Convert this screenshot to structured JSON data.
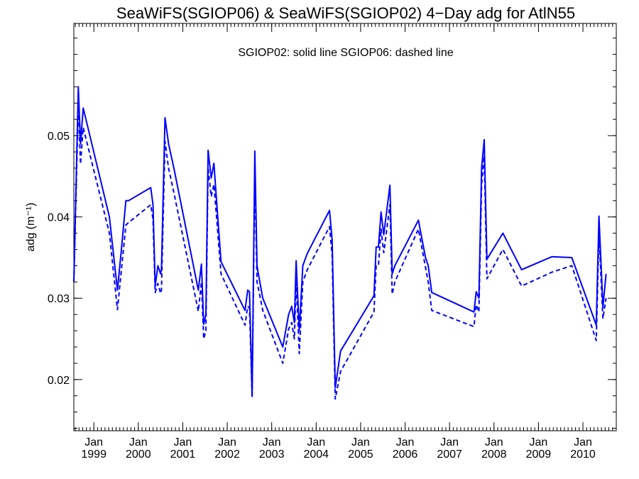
{
  "chart_data": {
    "type": "line",
    "title": "SeaWiFS(SGIOP06) & SeaWiFS(SGIOP02) 4−Day adg for AtlN55",
    "annotation": "SGIOP02: solid line   SGIOP06: dashed line",
    "ylabel": "adg (m⁻¹)",
    "xlim": [
      1998.55,
      2010.75
    ],
    "ylim": [
      0.0137,
      0.0638
    ],
    "grid": false,
    "line_color": "#0000ff",
    "x_ticks": [
      {
        "x": 1999.0,
        "top": "Jan",
        "bottom": "1999"
      },
      {
        "x": 2000.0,
        "top": "Jan",
        "bottom": "2000"
      },
      {
        "x": 2001.0,
        "top": "Jan",
        "bottom": "2001"
      },
      {
        "x": 2002.0,
        "top": "Jan",
        "bottom": "2002"
      },
      {
        "x": 2003.0,
        "top": "Jan",
        "bottom": "2003"
      },
      {
        "x": 2004.0,
        "top": "Jan",
        "bottom": "2004"
      },
      {
        "x": 2005.0,
        "top": "Jan",
        "bottom": "2005"
      },
      {
        "x": 2006.0,
        "top": "Jan",
        "bottom": "2006"
      },
      {
        "x": 2007.0,
        "top": "Jan",
        "bottom": "2007"
      },
      {
        "x": 2008.0,
        "top": "Jan",
        "bottom": "2008"
      },
      {
        "x": 2009.0,
        "top": "Jan",
        "bottom": "2009"
      },
      {
        "x": 2010.0,
        "top": "Jan",
        "bottom": "2010"
      }
    ],
    "y_ticks": [
      {
        "y": 0.02,
        "label": "0.02"
      },
      {
        "y": 0.03,
        "label": "0.03"
      },
      {
        "y": 0.04,
        "label": "0.04"
      },
      {
        "y": 0.05,
        "label": "0.05"
      }
    ],
    "series": [
      {
        "name": "SGIOP02",
        "style": "solid",
        "x": [
          1998.55,
          1998.65,
          1998.7,
          1998.76,
          1999.35,
          1999.53,
          1999.62,
          1999.72,
          1999.78,
          2000.28,
          2000.33,
          2000.38,
          2000.44,
          2000.5,
          2000.52,
          2000.6,
          2000.68,
          2000.8,
          2001.35,
          2001.42,
          2001.47,
          2001.52,
          2001.57,
          2001.64,
          2001.7,
          2001.76,
          2001.86,
          2002.4,
          2002.46,
          2002.5,
          2002.56,
          2002.62,
          2002.67,
          2002.7,
          2002.8,
          2003.25,
          2003.38,
          2003.45,
          2003.51,
          2003.55,
          2003.62,
          2003.7,
          2003.8,
          2004.3,
          2004.36,
          2004.43,
          2004.55,
          2005.3,
          2005.35,
          2005.4,
          2005.46,
          2005.52,
          2005.66,
          2005.71,
          2005.77,
          2006.3,
          2006.46,
          2006.52,
          2006.6,
          2007.55,
          2007.6,
          2007.66,
          2007.72,
          2007.78,
          2007.84,
          2008.2,
          2008.62,
          2009.3,
          2009.75,
          2010.3,
          2010.36,
          2010.45,
          2010.52
        ],
        "y": [
          0.032,
          0.056,
          0.049,
          0.0534,
          0.04,
          0.031,
          0.036,
          0.042,
          0.042,
          0.0436,
          0.0415,
          0.0315,
          0.034,
          0.033,
          0.0335,
          0.0522,
          0.049,
          0.046,
          0.031,
          0.0342,
          0.0268,
          0.028,
          0.0482,
          0.0448,
          0.0466,
          0.042,
          0.0345,
          0.0285,
          0.031,
          0.0308,
          0.018,
          0.0481,
          0.034,
          0.033,
          0.03,
          0.024,
          0.028,
          0.029,
          0.027,
          0.0346,
          0.026,
          0.034,
          0.0355,
          0.0408,
          0.0372,
          0.019,
          0.0235,
          0.0303,
          0.0363,
          0.0363,
          0.0406,
          0.0378,
          0.0439,
          0.033,
          0.034,
          0.0396,
          0.035,
          0.034,
          0.0307,
          0.0283,
          0.0308,
          0.03,
          0.046,
          0.0495,
          0.0348,
          0.038,
          0.0335,
          0.0351,
          0.035,
          0.0267,
          0.0401,
          0.0289,
          0.033
        ]
      },
      {
        "name": "SGIOP06",
        "style": "dashed",
        "x": [
          1998.55,
          1998.65,
          1998.7,
          1998.76,
          1999.35,
          1999.53,
          1999.62,
          1999.72,
          1999.78,
          2000.28,
          2000.33,
          2000.38,
          2000.44,
          2000.5,
          2000.52,
          2000.6,
          2000.68,
          2000.8,
          2001.35,
          2001.42,
          2001.47,
          2001.52,
          2001.57,
          2001.64,
          2001.7,
          2001.76,
          2001.86,
          2002.4,
          2002.46,
          2002.5,
          2002.56,
          2002.62,
          2002.67,
          2002.7,
          2002.8,
          2003.25,
          2003.38,
          2003.45,
          2003.51,
          2003.55,
          2003.62,
          2003.7,
          2003.8,
          2004.3,
          2004.36,
          2004.43,
          2004.55,
          2005.3,
          2005.35,
          2005.4,
          2005.46,
          2005.52,
          2005.66,
          2005.71,
          2005.77,
          2006.3,
          2006.46,
          2006.52,
          2006.6,
          2007.55,
          2007.6,
          2007.66,
          2007.72,
          2007.78,
          2007.84,
          2008.2,
          2008.62,
          2009.3,
          2009.75,
          2010.3,
          2010.36,
          2010.45,
          2010.52
        ],
        "y": [
          0.032,
          0.054,
          0.0465,
          0.051,
          0.038,
          0.0286,
          0.0335,
          0.039,
          0.0393,
          0.0415,
          0.0397,
          0.0307,
          0.0318,
          0.0306,
          0.031,
          0.0493,
          0.046,
          0.043,
          0.0284,
          0.032,
          0.025,
          0.026,
          0.046,
          0.0425,
          0.044,
          0.04,
          0.033,
          0.0267,
          0.029,
          0.0288,
          0.0178,
          0.046,
          0.032,
          0.0312,
          0.0285,
          0.022,
          0.0262,
          0.027,
          0.025,
          0.0323,
          0.0232,
          0.032,
          0.0335,
          0.0388,
          0.0353,
          0.0176,
          0.021,
          0.0283,
          0.034,
          0.034,
          0.0385,
          0.0356,
          0.0415,
          0.0305,
          0.032,
          0.0385,
          0.0338,
          0.032,
          0.0285,
          0.0265,
          0.0292,
          0.0283,
          0.044,
          0.0475,
          0.0324,
          0.036,
          0.0315,
          0.0332,
          0.034,
          0.0248,
          0.038,
          0.0275,
          0.03
        ]
      }
    ]
  }
}
